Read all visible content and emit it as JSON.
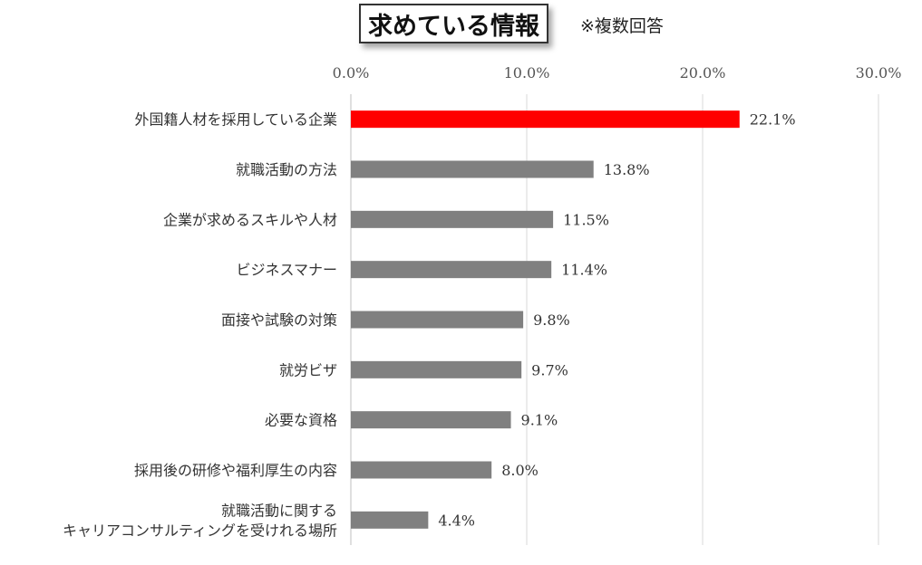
{
  "title": "求めている情報",
  "note": "※複数回答",
  "chart_data": {
    "type": "bar",
    "orientation": "horizontal",
    "title": "求めている情報",
    "xlim": [
      0,
      30
    ],
    "x_ticks": [
      "0.0%",
      "10.0%",
      "20.0%",
      "30.0%"
    ],
    "x_tick_values": [
      0,
      10,
      20,
      30
    ],
    "grid": true,
    "categories": [
      [
        "外国籍人材を採用している企業"
      ],
      [
        "就職活動の方法"
      ],
      [
        "企業が求めるスキルや人材"
      ],
      [
        "ビジネスマナー"
      ],
      [
        "面接や試験の対策"
      ],
      [
        "就労ビザ"
      ],
      [
        "必要な資格"
      ],
      [
        "採用後の研修や福利厚生の内容"
      ],
      [
        "就職活動に関する",
        "キャリアコンサルティングを受けれる場所"
      ]
    ],
    "values": [
      22.1,
      13.8,
      11.5,
      11.4,
      9.8,
      9.7,
      9.1,
      8.0,
      4.4
    ],
    "value_labels": [
      "22.1%",
      "13.8%",
      "11.5%",
      "11.4%",
      "9.8%",
      "9.7%",
      "9.1%",
      "8.0%",
      "4.4%"
    ],
    "colors": [
      "#ff0000",
      "#808080",
      "#808080",
      "#808080",
      "#808080",
      "#808080",
      "#808080",
      "#808080",
      "#808080"
    ],
    "gridline_color": "#d9d9d9",
    "axis_color": "#bfbfbf"
  }
}
